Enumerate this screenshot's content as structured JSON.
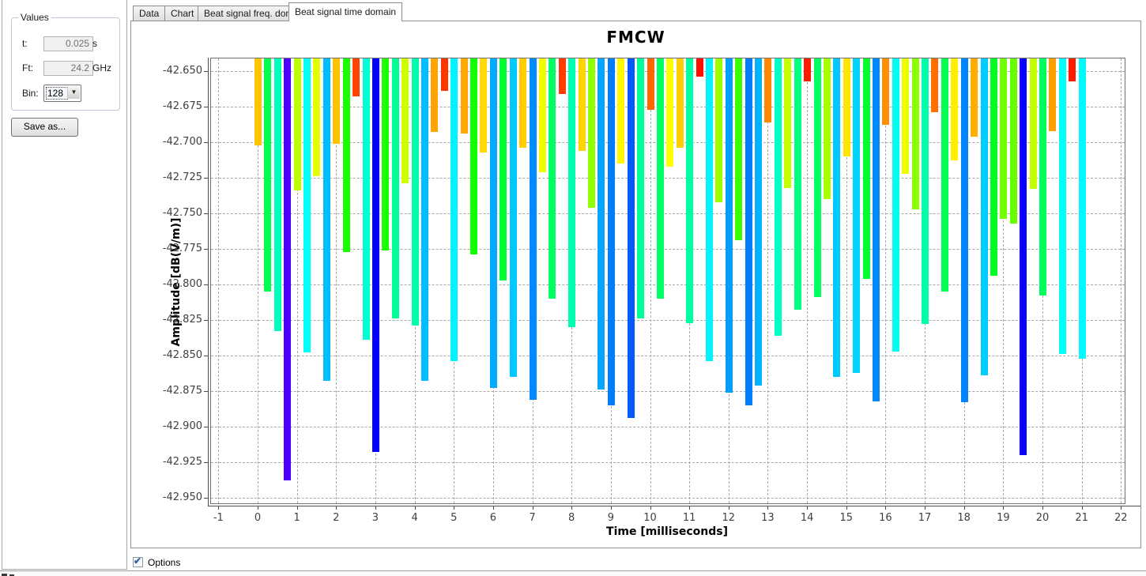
{
  "sidebar": {
    "group_label": "Values",
    "t_label": "t:",
    "t_value": "0.025",
    "t_unit": "s",
    "ft_label": "Ft:",
    "ft_value": "24.2",
    "ft_unit": "GHz",
    "bin_label": "Bin:",
    "bin_value": "128",
    "save_button": "Save as..."
  },
  "tabs": {
    "items": [
      {
        "label": "Data",
        "active": false
      },
      {
        "label": "Chart",
        "active": false
      },
      {
        "label": "Beat signal freq. domain",
        "active": false
      },
      {
        "label": "Beat signal time domain",
        "active": true
      }
    ]
  },
  "footer": {
    "options_label": "Options",
    "options_checked": true
  },
  "chart_data": {
    "type": "bar",
    "title": "FMCW",
    "xlabel": "Time [milliseconds]",
    "ylabel": "Amplitude [dB(V/m)]",
    "xlim": [
      -1,
      22
    ],
    "ylim": [
      -42.954,
      -42.64
    ],
    "xticks": [
      -1,
      0,
      1,
      2,
      3,
      4,
      5,
      6,
      7,
      8,
      9,
      10,
      11,
      12,
      13,
      14,
      15,
      16,
      17,
      18,
      19,
      20,
      21,
      22
    ],
    "yticks": [
      "-42.650",
      "-42.675",
      "-42.700",
      "-42.725",
      "-42.750",
      "-42.775",
      "-42.800",
      "-42.825",
      "-42.850",
      "-42.875",
      "-42.900",
      "-42.925",
      "-42.950"
    ],
    "grid": true,
    "legend": "none",
    "bar_baseline": "top of plot (bars hang downward to their amplitude value)",
    "color_rule": "rainbow colormap by value: red = highest amplitude (~-42.65), blue/navy = lowest (~-42.94)",
    "x_start": 0,
    "x_step": 0.25,
    "values": [
      -42.702,
      -42.805,
      -42.833,
      -42.938,
      -42.734,
      -42.848,
      -42.724,
      -42.868,
      -42.701,
      -42.777,
      -42.668,
      -42.839,
      -42.918,
      -42.776,
      -42.824,
      -42.729,
      -42.829,
      -42.868,
      -42.693,
      -42.664,
      -42.854,
      -42.694,
      -42.779,
      -42.707,
      -42.873,
      -42.797,
      -42.865,
      -42.704,
      -42.881,
      -42.721,
      -42.81,
      -42.666,
      -42.83,
      -42.706,
      -42.746,
      -42.874,
      -42.885,
      -42.715,
      -42.894,
      -42.824,
      -42.677,
      -42.81,
      -42.717,
      -42.704,
      -42.827,
      -42.654,
      -42.854,
      -42.742,
      -42.876,
      -42.769,
      -42.885,
      -42.871,
      -42.686,
      -42.836,
      -42.732,
      -42.818,
      -42.657,
      -42.809,
      -42.74,
      -42.865,
      -42.71,
      -42.862,
      -42.796,
      -42.882,
      -42.688,
      -42.847,
      -42.722,
      -42.747,
      -42.828,
      -42.679,
      -42.805,
      -42.713,
      -42.883,
      -42.696,
      -42.864,
      -42.794,
      -42.754,
      -42.757,
      -42.92,
      -42.733,
      -42.808,
      -42.692,
      -42.849,
      -42.657,
      -42.852
    ]
  }
}
